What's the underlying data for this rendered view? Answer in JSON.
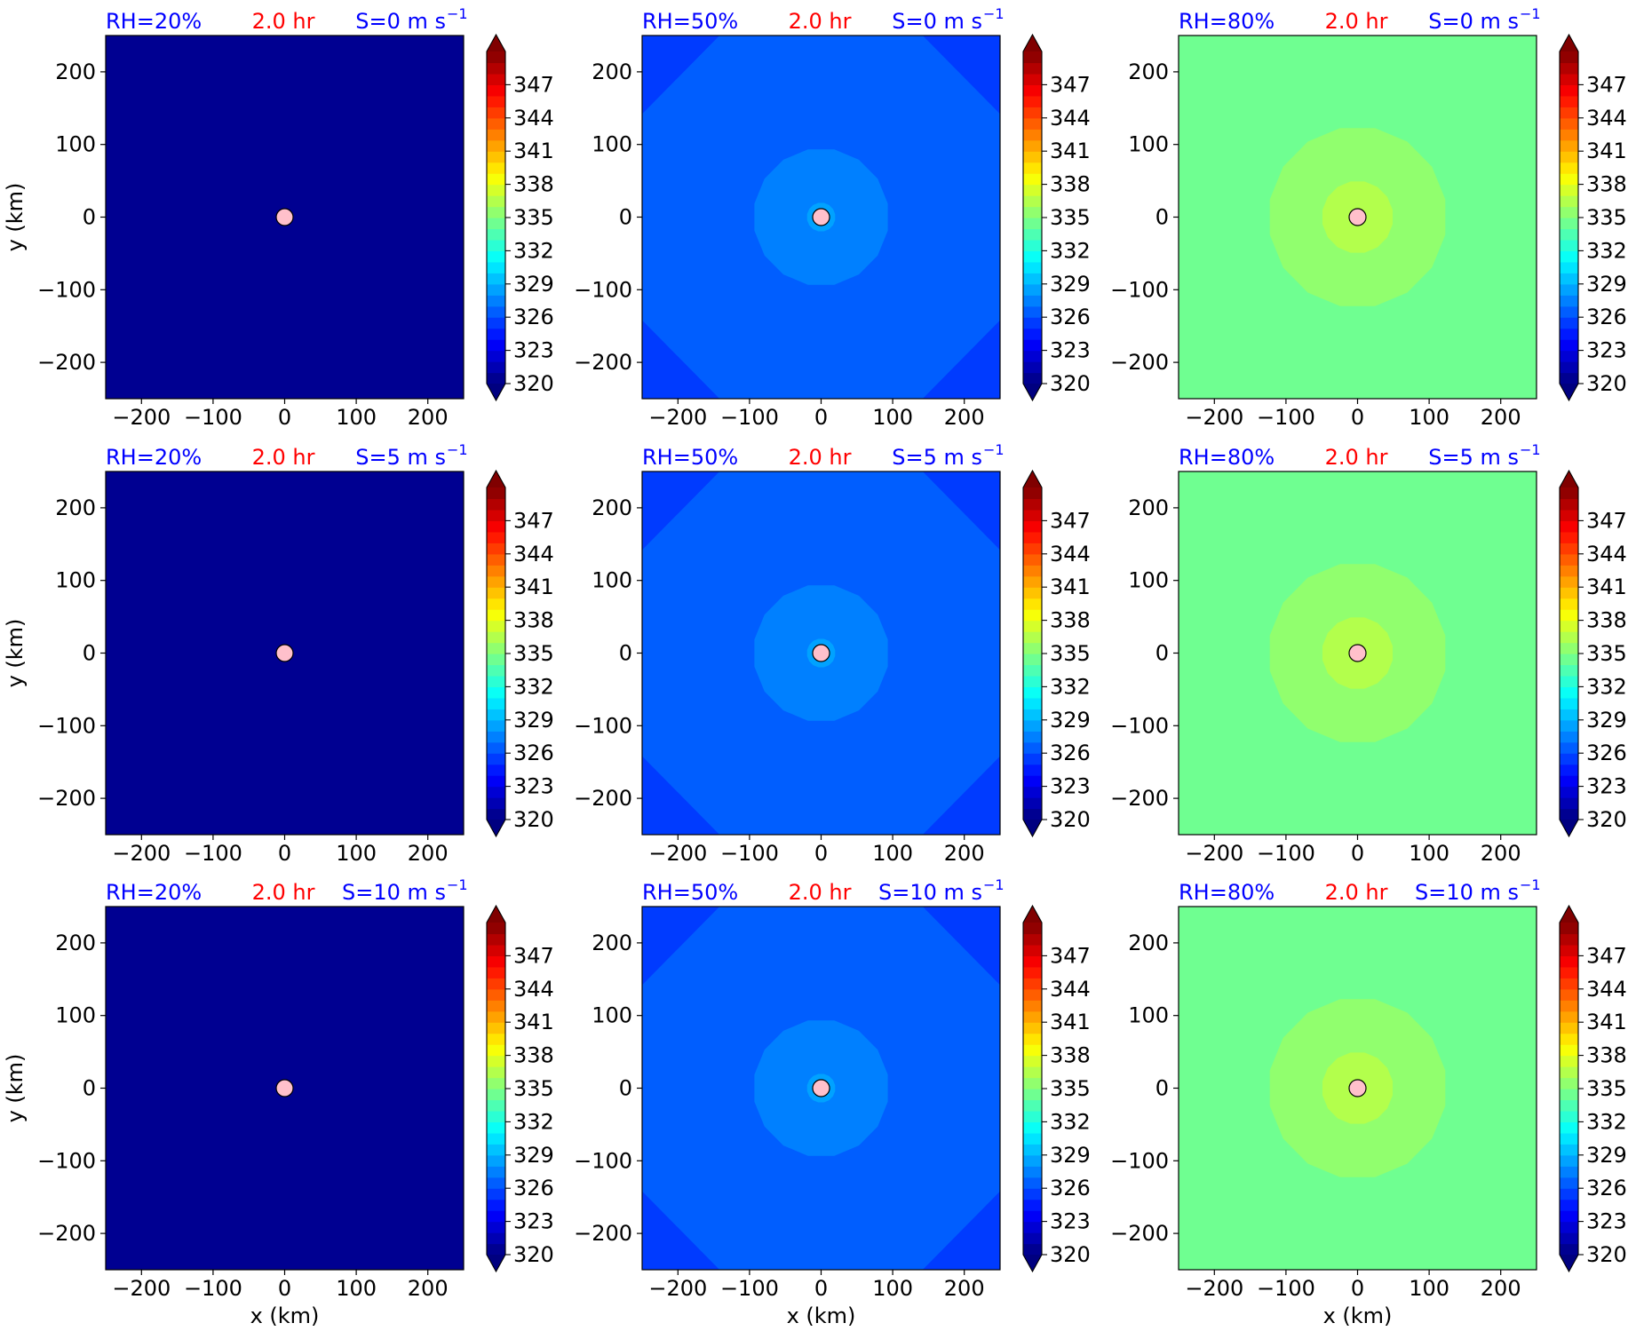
{
  "chart_data": {
    "type": "heatmap",
    "layout": {
      "rows": 3,
      "cols": 3
    },
    "time_label": "2.0 hr",
    "xlabel": "x (km)",
    "ylabel": "y (km)",
    "xlim": [
      -250,
      250
    ],
    "ylim": [
      -250,
      250
    ],
    "xticks": [
      -200,
      -100,
      0,
      100,
      200
    ],
    "yticks": [
      -200,
      -100,
      0,
      100,
      200
    ],
    "tick_labels": [
      "−200",
      "−100",
      "0",
      "100",
      "200"
    ],
    "colorbar": {
      "min": 320,
      "max": 350,
      "step": 1,
      "ticks": [
        320,
        323,
        326,
        329,
        332,
        335,
        338,
        341,
        344,
        347
      ],
      "tick_labels": [
        "320",
        "323",
        "326",
        "329",
        "332",
        "335",
        "338",
        "341",
        "344",
        "347"
      ],
      "extend": "both",
      "colormap": "jet"
    },
    "colors": {
      "rh_label": "#0000ff",
      "time_label": "#ff0000",
      "shear_label": "#0000ff",
      "marker_fill": "#ffc0cb"
    },
    "shear_labels": [
      "S=0 m s",
      "S=5 m s",
      "S=10 m s"
    ],
    "shear_superscript": "−1",
    "rh_labels": [
      "RH=20%",
      "RH=50%",
      "RH=80%"
    ],
    "columns": [
      {
        "rh_label": "RH=20%",
        "background_value": 320,
        "contours": []
      },
      {
        "rh_label": "RH=50%",
        "background_value": 326,
        "contours": [
          {
            "value": 325.2,
            "kind": "corners",
            "radius_km": 300
          },
          {
            "value": 327,
            "kind": "disk",
            "radius_km": 95
          },
          {
            "value": 328,
            "kind": "disk",
            "radius_km": 20
          }
        ]
      },
      {
        "rh_label": "RH=80%",
        "background_value": 334,
        "contours": [
          {
            "value": 335,
            "kind": "disk",
            "radius_km": 125
          },
          {
            "value": 336,
            "kind": "disk",
            "radius_km": 50
          }
        ]
      }
    ],
    "rows": [
      {
        "shear_label": "S=0 m s"
      },
      {
        "shear_label": "S=5 m s"
      },
      {
        "shear_label": "S=10 m s"
      }
    ],
    "center_marker": {
      "x": 0,
      "y": 0
    }
  }
}
